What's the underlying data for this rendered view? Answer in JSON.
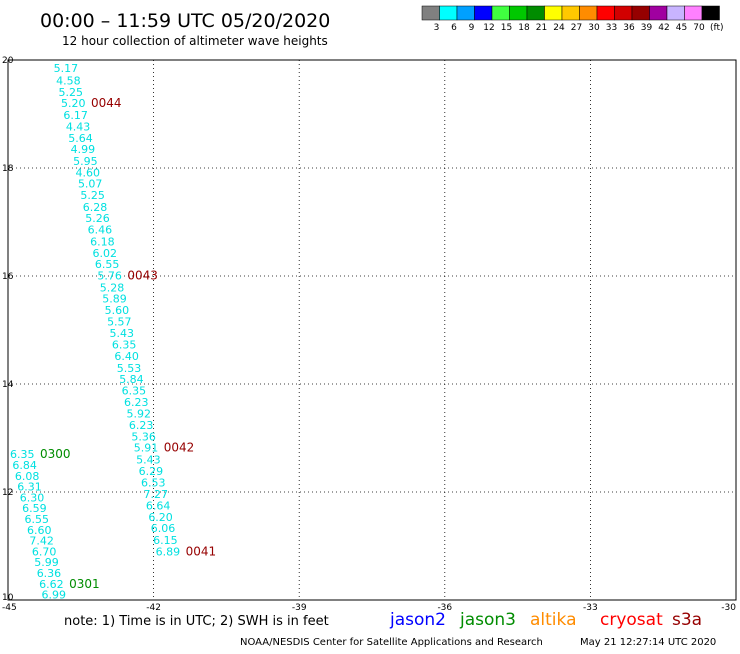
{
  "header": {
    "title": "00:00 – 11:59 UTC 05/20/2020",
    "subtitle": "12 hour collection of altimeter wave heights"
  },
  "legend": {
    "unit": "(ft)",
    "bins": [
      {
        "label": "3",
        "color": "#808080"
      },
      {
        "label": "6",
        "color": "#00ffff"
      },
      {
        "label": "9",
        "color": "#00a0ff"
      },
      {
        "label": "12",
        "color": "#0000ff"
      },
      {
        "label": "15",
        "color": "#40ff40"
      },
      {
        "label": "18",
        "color": "#00c800"
      },
      {
        "label": "21",
        "color": "#008c00"
      },
      {
        "label": "24",
        "color": "#ffff00"
      },
      {
        "label": "27",
        "color": "#ffc800"
      },
      {
        "label": "30",
        "color": "#ff8c00"
      },
      {
        "label": "33",
        "color": "#ff0000"
      },
      {
        "label": "36",
        "color": "#d20000"
      },
      {
        "label": "39",
        "color": "#960000"
      },
      {
        "label": "42",
        "color": "#a000a0"
      },
      {
        "label": "45",
        "color": "#c8b4ff"
      },
      {
        "label": "70",
        "color": "#ff80ff"
      },
      {
        "label": "",
        "color": "#000000"
      }
    ]
  },
  "footer": {
    "note": "note:  1) Time is in UTC;  2) SWH is in feet",
    "credit": "NOAA/NESDIS Center for Satellite Applications and Research",
    "timestamp": "May 21 12:27:14 UTC 2020"
  },
  "chart_data": {
    "type": "scatter",
    "xlim": [
      -45,
      -30
    ],
    "ylim": [
      10,
      20
    ],
    "x_ticks": [
      "-45",
      "-42",
      "-39",
      "-36",
      "-33",
      "-30"
    ],
    "y_ticks": [
      "10",
      "12",
      "14",
      "16",
      "18",
      "20"
    ],
    "grid": true,
    "satellites": [
      {
        "name": "jason2",
        "color": "#0000ff"
      },
      {
        "name": "jason3",
        "color": "#008c00"
      },
      {
        "name": "altika",
        "color": "#ff8c00"
      },
      {
        "name": "cryosat",
        "color": "#ff0000"
      },
      {
        "name": "s3a",
        "color": "#960000"
      }
    ],
    "tracks": [
      {
        "satellite": "s3a",
        "color": "#00e0e0",
        "points": [
          {
            "x": -44.1,
            "y": 19.85,
            "value": "5.17"
          },
          {
            "x": -44.05,
            "y": 19.62,
            "value": "4.58"
          },
          {
            "x": -44.0,
            "y": 19.41,
            "value": "5.25"
          },
          {
            "x": -43.95,
            "y": 19.2,
            "value": "5.20"
          },
          {
            "x": -43.9,
            "y": 18.98,
            "value": "6.17"
          },
          {
            "x": -43.85,
            "y": 18.77,
            "value": "4.43"
          },
          {
            "x": -43.8,
            "y": 18.56,
            "value": "5.64"
          },
          {
            "x": -43.75,
            "y": 18.35,
            "value": "4.99"
          },
          {
            "x": -43.7,
            "y": 18.13,
            "value": "5.95"
          },
          {
            "x": -43.65,
            "y": 17.92,
            "value": "4.60"
          },
          {
            "x": -43.6,
            "y": 17.71,
            "value": "5.07"
          },
          {
            "x": -43.55,
            "y": 17.5,
            "value": "5.25"
          },
          {
            "x": -43.5,
            "y": 17.28,
            "value": "6.28"
          },
          {
            "x": -43.45,
            "y": 17.07,
            "value": "5.26"
          },
          {
            "x": -43.4,
            "y": 16.86,
            "value": "6.46"
          },
          {
            "x": -43.35,
            "y": 16.64,
            "value": "6.18"
          },
          {
            "x": -43.3,
            "y": 16.43,
            "value": "6.02"
          },
          {
            "x": -43.25,
            "y": 16.22,
            "value": "6.55"
          },
          {
            "x": -43.2,
            "y": 16.01,
            "value": "5.76"
          },
          {
            "x": -43.15,
            "y": 15.79,
            "value": "5.28"
          },
          {
            "x": -43.1,
            "y": 15.58,
            "value": "5.89"
          },
          {
            "x": -43.05,
            "y": 15.37,
            "value": "5.60"
          },
          {
            "x": -43.0,
            "y": 15.16,
            "value": "5.57"
          },
          {
            "x": -42.95,
            "y": 14.94,
            "value": "5.43"
          },
          {
            "x": -42.9,
            "y": 14.73,
            "value": "6.35"
          },
          {
            "x": -42.85,
            "y": 14.52,
            "value": "6.40"
          },
          {
            "x": -42.8,
            "y": 14.3,
            "value": "5.53"
          },
          {
            "x": -42.75,
            "y": 14.09,
            "value": "5.84"
          },
          {
            "x": -42.7,
            "y": 13.88,
            "value": "6.35"
          },
          {
            "x": -42.65,
            "y": 13.67,
            "value": "6.23"
          },
          {
            "x": -42.6,
            "y": 13.45,
            "value": "5.92"
          },
          {
            "x": -42.55,
            "y": 13.24,
            "value": "6.23"
          },
          {
            "x": -42.5,
            "y": 13.03,
            "value": "5.36"
          },
          {
            "x": -42.45,
            "y": 12.82,
            "value": "5.91"
          },
          {
            "x": -42.4,
            "y": 12.6,
            "value": "5.43"
          },
          {
            "x": -42.35,
            "y": 12.39,
            "value": "6.29"
          },
          {
            "x": -42.3,
            "y": 12.18,
            "value": "6.53"
          },
          {
            "x": -42.25,
            "y": 11.96,
            "value": "7.27"
          },
          {
            "x": -42.2,
            "y": 11.75,
            "value": "6.64"
          },
          {
            "x": -42.15,
            "y": 11.54,
            "value": "6.20"
          },
          {
            "x": -42.1,
            "y": 11.33,
            "value": "6.06"
          },
          {
            "x": -42.05,
            "y": 11.11,
            "value": "6.15"
          },
          {
            "x": -42.0,
            "y": 10.9,
            "value": "6.89"
          }
        ],
        "time_labels": [
          {
            "x": -43.95,
            "y": 19.2,
            "label": "0044"
          },
          {
            "x": -43.2,
            "y": 16.01,
            "label": "0043"
          },
          {
            "x": -42.45,
            "y": 12.82,
            "label": "0042"
          },
          {
            "x": -42.0,
            "y": 10.9,
            "label": "0041"
          }
        ]
      },
      {
        "satellite": "jason3",
        "color": "#00e0e0",
        "points": [
          {
            "x": -45.0,
            "y": 12.7,
            "value": "6.35"
          },
          {
            "x": -44.95,
            "y": 12.5,
            "value": "6.84"
          },
          {
            "x": -44.9,
            "y": 12.3,
            "value": "6.08"
          },
          {
            "x": -44.85,
            "y": 12.1,
            "value": "6.31"
          },
          {
            "x": -44.8,
            "y": 11.9,
            "value": "6.30"
          },
          {
            "x": -44.75,
            "y": 11.7,
            "value": "6.59"
          },
          {
            "x": -44.7,
            "y": 11.5,
            "value": "6.55"
          },
          {
            "x": -44.65,
            "y": 11.3,
            "value": "6.60"
          },
          {
            "x": -44.6,
            "y": 11.1,
            "value": "7.42"
          },
          {
            "x": -44.55,
            "y": 10.9,
            "value": "6.70"
          },
          {
            "x": -44.5,
            "y": 10.7,
            "value": "5.99"
          },
          {
            "x": -44.45,
            "y": 10.5,
            "value": "6.36"
          },
          {
            "x": -44.4,
            "y": 10.3,
            "value": "6.62"
          },
          {
            "x": -44.35,
            "y": 10.1,
            "value": "6.99"
          }
        ],
        "time_labels": [
          {
            "x": -45.0,
            "y": 12.7,
            "label": "0300"
          },
          {
            "x": -44.4,
            "y": 10.3,
            "label": "0301"
          }
        ]
      }
    ]
  }
}
